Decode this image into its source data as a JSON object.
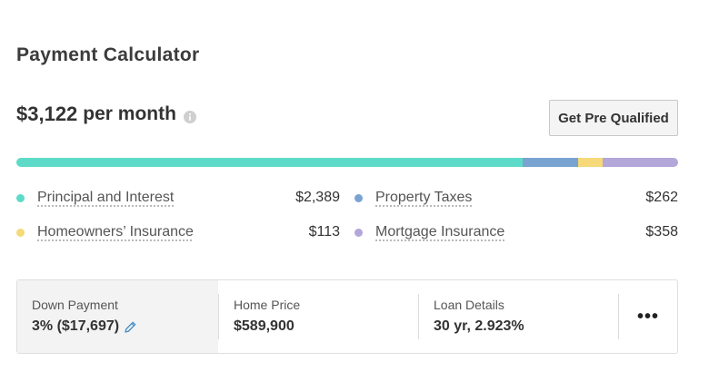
{
  "title": "Payment Calculator",
  "summary": {
    "amount": "$3,122",
    "suffix": "per month",
    "info_icon": "info-circle-icon"
  },
  "prequal_button": "Get Pre Qualified",
  "breakdown_bar": {
    "segments": [
      {
        "name": "Principal and Interest",
        "amount": 2389,
        "color": "#5ddbc8"
      },
      {
        "name": "Property Taxes",
        "amount": 262,
        "color": "#79a3d1"
      },
      {
        "name": "Homeowners' Insurance",
        "amount": 113,
        "color": "#f6d978"
      },
      {
        "name": "Mortgage Insurance",
        "amount": 358,
        "color": "#b3a6d9"
      }
    ]
  },
  "legend": [
    {
      "label": "Principal and Interest",
      "value": "$2,389",
      "color": "#5ddbc8"
    },
    {
      "label": "Property Taxes",
      "value": "$262",
      "color": "#79a3d1"
    },
    {
      "label": "Homeowners’ Insurance",
      "value": "$113",
      "color": "#f6d978"
    },
    {
      "label": "Mortgage Insurance",
      "value": "$358",
      "color": "#b3a6d9"
    }
  ],
  "details": {
    "down_payment": {
      "label": "Down Payment",
      "value": "3% ($17,697)",
      "icon": "pencil-icon"
    },
    "home_price": {
      "label": "Home Price",
      "value": "$589,900"
    },
    "loan_details": {
      "label": "Loan Details",
      "value": "30 yr, 2.923%"
    },
    "more": {
      "label": "•••",
      "icon": "more-horizontal-icon"
    }
  }
}
